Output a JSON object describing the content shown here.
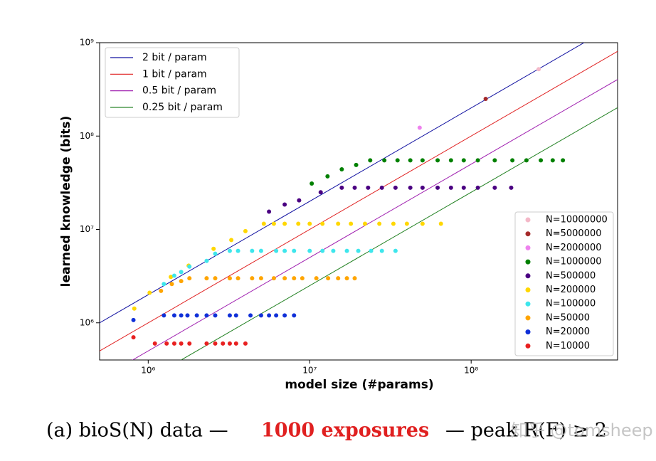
{
  "chart_data": {
    "type": "scatter",
    "xlabel": "model size (#params)",
    "ylabel": "learned knowledge (bits)",
    "log_x": true,
    "log_y": true,
    "xlim": [
      500000,
      807000000
    ],
    "ylim": [
      400000,
      1000000000
    ],
    "xticks": [
      {
        "value": 1000000,
        "label": "10⁶"
      },
      {
        "value": 10000000,
        "label": "10⁷"
      },
      {
        "value": 100000000,
        "label": "10⁸"
      }
    ],
    "yticks": [
      {
        "value": 1000000,
        "label": "10⁶"
      },
      {
        "value": 10000000,
        "label": "10⁷"
      },
      {
        "value": 100000000,
        "label": "10⁸"
      },
      {
        "value": 1000000000,
        "label": "10⁹"
      }
    ],
    "lines": [
      {
        "name": "2 bit / param",
        "color": "#1010a0",
        "bits_per_param": 2
      },
      {
        "name": "1 bit / param",
        "color": "#e02020",
        "bits_per_param": 1
      },
      {
        "name": "0.5 bit / param",
        "color": "#a020b0",
        "bits_per_param": 0.5
      },
      {
        "name": "0.25 bit / param",
        "color": "#208020",
        "bits_per_param": 0.25
      }
    ],
    "lines_legend": "upper left",
    "legend": "lower right",
    "series": [
      {
        "name": "N=10000000",
        "color": "#f4b8c8",
        "x": [
          262000000
        ],
        "values": [
          520000000
        ]
      },
      {
        "name": "N=5000000",
        "color": "#a52a2a",
        "x": [
          123000000
        ],
        "values": [
          250000000
        ]
      },
      {
        "name": "N=2000000",
        "color": "#ee82ee",
        "x": [
          48000000
        ],
        "values": [
          123000000
        ]
      },
      {
        "name": "N=1000000",
        "color": "#008000",
        "x": [
          10300000,
          12900000,
          15800000,
          19400000,
          23700000,
          29000000,
          35000000,
          42000000,
          50000000,
          62000000,
          75000000,
          90000000,
          110000000,
          140000000,
          180000000,
          220000000,
          270000000,
          320000000,
          370000000
        ],
        "values": [
          31000000,
          37000000,
          44000000,
          49000000,
          55000000,
          55000000,
          55000000,
          55000000,
          55000000,
          55000000,
          55000000,
          55000000,
          55000000,
          55000000,
          55000000,
          55000000,
          55000000,
          55000000,
          55000000
        ]
      },
      {
        "name": "N=500000",
        "color": "#4b0082",
        "x": [
          5600000,
          7000000,
          8600000,
          11700000,
          15800000,
          19000000,
          23000000,
          28000000,
          34000000,
          42000000,
          50000000,
          62000000,
          75000000,
          90000000,
          110000000,
          140000000,
          177000000
        ],
        "values": [
          15500000,
          18500000,
          20500000,
          25000000,
          28000000,
          28000000,
          28000000,
          28000000,
          28000000,
          28000000,
          28000000,
          28000000,
          28000000,
          28000000,
          28000000,
          28000000,
          28000000
        ]
      },
      {
        "name": "N=200000",
        "color": "#ffd700",
        "x": [
          820000,
          1020000,
          1380000,
          1780000,
          2540000,
          3270000,
          4000000,
          5200000,
          6000000,
          7000000,
          8500000,
          10000000,
          12000000,
          15000000,
          18000000,
          22000000,
          27000000,
          33000000,
          40000000,
          50000000,
          65000000
        ],
        "values": [
          1420000,
          2100000,
          3100000,
          4100000,
          6200000,
          7700000,
          9600000,
          11500000,
          11500000,
          11500000,
          11500000,
          11500000,
          11500000,
          11500000,
          11500000,
          11500000,
          11500000,
          11500000,
          11500000,
          11500000,
          11500000
        ]
      },
      {
        "name": "N=100000",
        "color": "#3ee6ec",
        "x": [
          1250000,
          1450000,
          1600000,
          1800000,
          2300000,
          2600000,
          3200000,
          3600000,
          4400000,
          5000000,
          6200000,
          7000000,
          8000000,
          10000000,
          12000000,
          14000000,
          17000000,
          20000000,
          24000000,
          28000000,
          34000000
        ],
        "values": [
          2600000,
          3200000,
          3500000,
          4000000,
          4600000,
          5500000,
          5900000,
          5900000,
          5900000,
          5900000,
          5900000,
          5900000,
          5900000,
          5900000,
          5900000,
          5900000,
          5900000,
          5900000,
          5900000,
          5900000,
          5900000
        ]
      },
      {
        "name": "N=50000",
        "color": "#ffa500",
        "x": [
          1200000,
          1400000,
          1600000,
          1800000,
          2300000,
          2600000,
          3200000,
          3600000,
          4400000,
          5000000,
          6000000,
          7000000,
          8000000,
          9000000,
          11000000,
          13000000,
          15000000,
          17000000,
          19000000
        ],
        "values": [
          2200000,
          2600000,
          2800000,
          3000000,
          3000000,
          3000000,
          3000000,
          3000000,
          3000000,
          3000000,
          3000000,
          3000000,
          3000000,
          3000000,
          3000000,
          3000000,
          3000000,
          3000000,
          3000000
        ]
      },
      {
        "name": "N=20000",
        "color": "#1030d8",
        "x": [
          810000,
          1250000,
          1450000,
          1600000,
          1750000,
          2000000,
          2300000,
          2600000,
          3200000,
          3500000,
          4300000,
          5000000,
          5600000,
          6200000,
          7000000,
          8000000
        ],
        "values": [
          1070000,
          1200000,
          1200000,
          1200000,
          1200000,
          1200000,
          1200000,
          1200000,
          1200000,
          1200000,
          1200000,
          1200000,
          1200000,
          1200000,
          1200000,
          1200000
        ]
      },
      {
        "name": "N=10000",
        "color": "#e82020",
        "x": [
          810000,
          1100000,
          1300000,
          1450000,
          1600000,
          1800000,
          2300000,
          2600000,
          2900000,
          3200000,
          3500000,
          4000000
        ],
        "values": [
          700000,
          600000,
          600000,
          600000,
          600000,
          600000,
          600000,
          600000,
          600000,
          600000,
          600000,
          600000
        ]
      }
    ]
  },
  "caption": {
    "prefix": "(a) bioS(N) data —",
    "highlight": "1000 exposures",
    "suffix": "— peak R(F) ≥ 2",
    "watermark": "知乎 @tomsheep"
  }
}
